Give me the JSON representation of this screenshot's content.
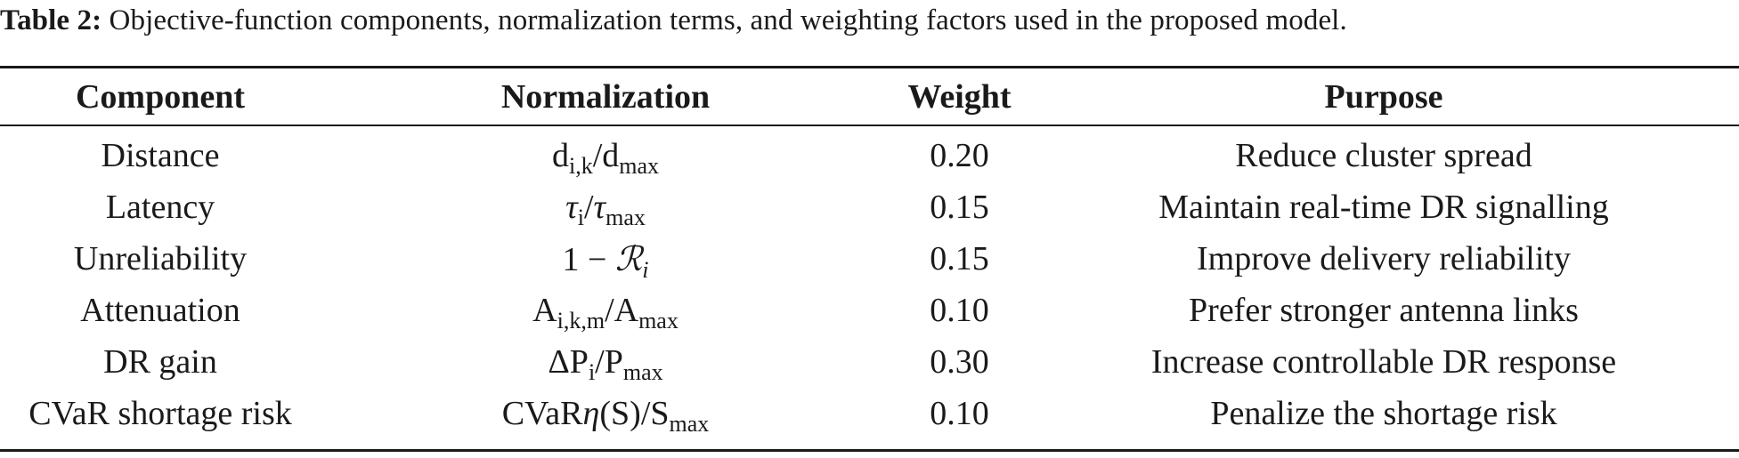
{
  "caption": {
    "label": "Table 2:",
    "text": " Objective-function components, normalization terms, and weighting factors used in the proposed model."
  },
  "table": {
    "headers": [
      "Component",
      "Normalization",
      "Weight",
      "Purpose"
    ],
    "rows": [
      {
        "component": "Distance",
        "norm": {
          "a": "d",
          "a_sub": "i,k",
          "sep": "/",
          "b": "d",
          "b_sub": "max"
        },
        "weight": "0.20",
        "purpose": "Reduce cluster spread"
      },
      {
        "component": "Latency",
        "norm": {
          "a": "τ",
          "a_sub": "i",
          "sep": "/",
          "b": "τ",
          "b_sub": "max"
        },
        "weight": "0.15",
        "purpose": "Maintain real-time DR signalling"
      },
      {
        "component": "Unreliability",
        "norm": {
          "a": "1 − ",
          "r": "ℛ",
          "r_sub": "i"
        },
        "weight": "0.15",
        "purpose": "Improve delivery reliability"
      },
      {
        "component": "Attenuation",
        "norm": {
          "a": "A",
          "a_sub": "i,k,m",
          "sep": "/",
          "b": "A",
          "b_sub": "max"
        },
        "weight": "0.10",
        "purpose": "Prefer stronger antenna links"
      },
      {
        "component": "DR gain",
        "norm": {
          "a": "ΔP",
          "a_sub": "i",
          "sep": "/",
          "b": "P",
          "b_sub": "max"
        },
        "weight": "0.30",
        "purpose": "Increase controllable DR response"
      },
      {
        "component": "CVaR shortage risk",
        "norm": {
          "a": "CVaR",
          "eta": "η",
          "paren": "(S)",
          "sep": "/",
          "b": "S",
          "b_sub": "max"
        },
        "weight": "0.10",
        "purpose": "Penalize the shortage risk"
      }
    ]
  }
}
